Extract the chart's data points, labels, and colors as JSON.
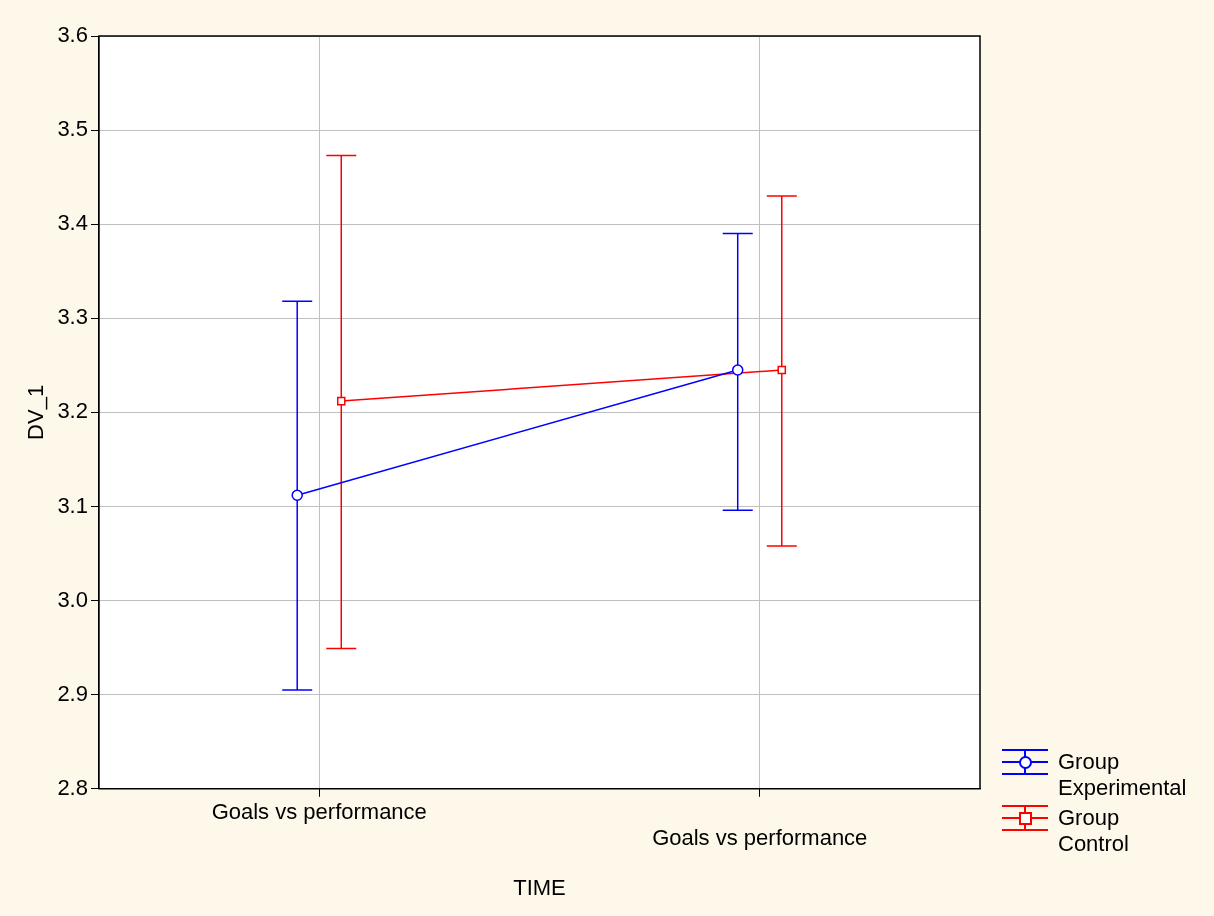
{
  "chart_data": {
    "type": "line",
    "xlabel": "TIME",
    "ylabel": "DV_1",
    "categories": [
      "Goals vs performance",
      "Goals vs performance"
    ],
    "series": [
      {
        "name": "Group Experimental",
        "color": "#0000ff",
        "marker": "circle",
        "values": [
          3.112,
          3.245
        ],
        "errors": [
          [
            2.905,
            3.318
          ],
          [
            3.096,
            3.39
          ]
        ]
      },
      {
        "name": "Group Control",
        "color": "#ff0000",
        "marker": "square",
        "values": [
          3.212,
          3.245
        ],
        "errors": [
          [
            2.949,
            3.473
          ],
          [
            3.058,
            3.43
          ]
        ]
      }
    ],
    "ylim": [
      2.8,
      3.6
    ],
    "yticks": [
      2.8,
      2.9,
      {
        "value": 3,
        "label": "3.0"
      },
      3.1,
      3.2,
      3.3,
      3.4,
      3.5,
      3.6
    ],
    "grid": true,
    "legend": "bottom right"
  }
}
